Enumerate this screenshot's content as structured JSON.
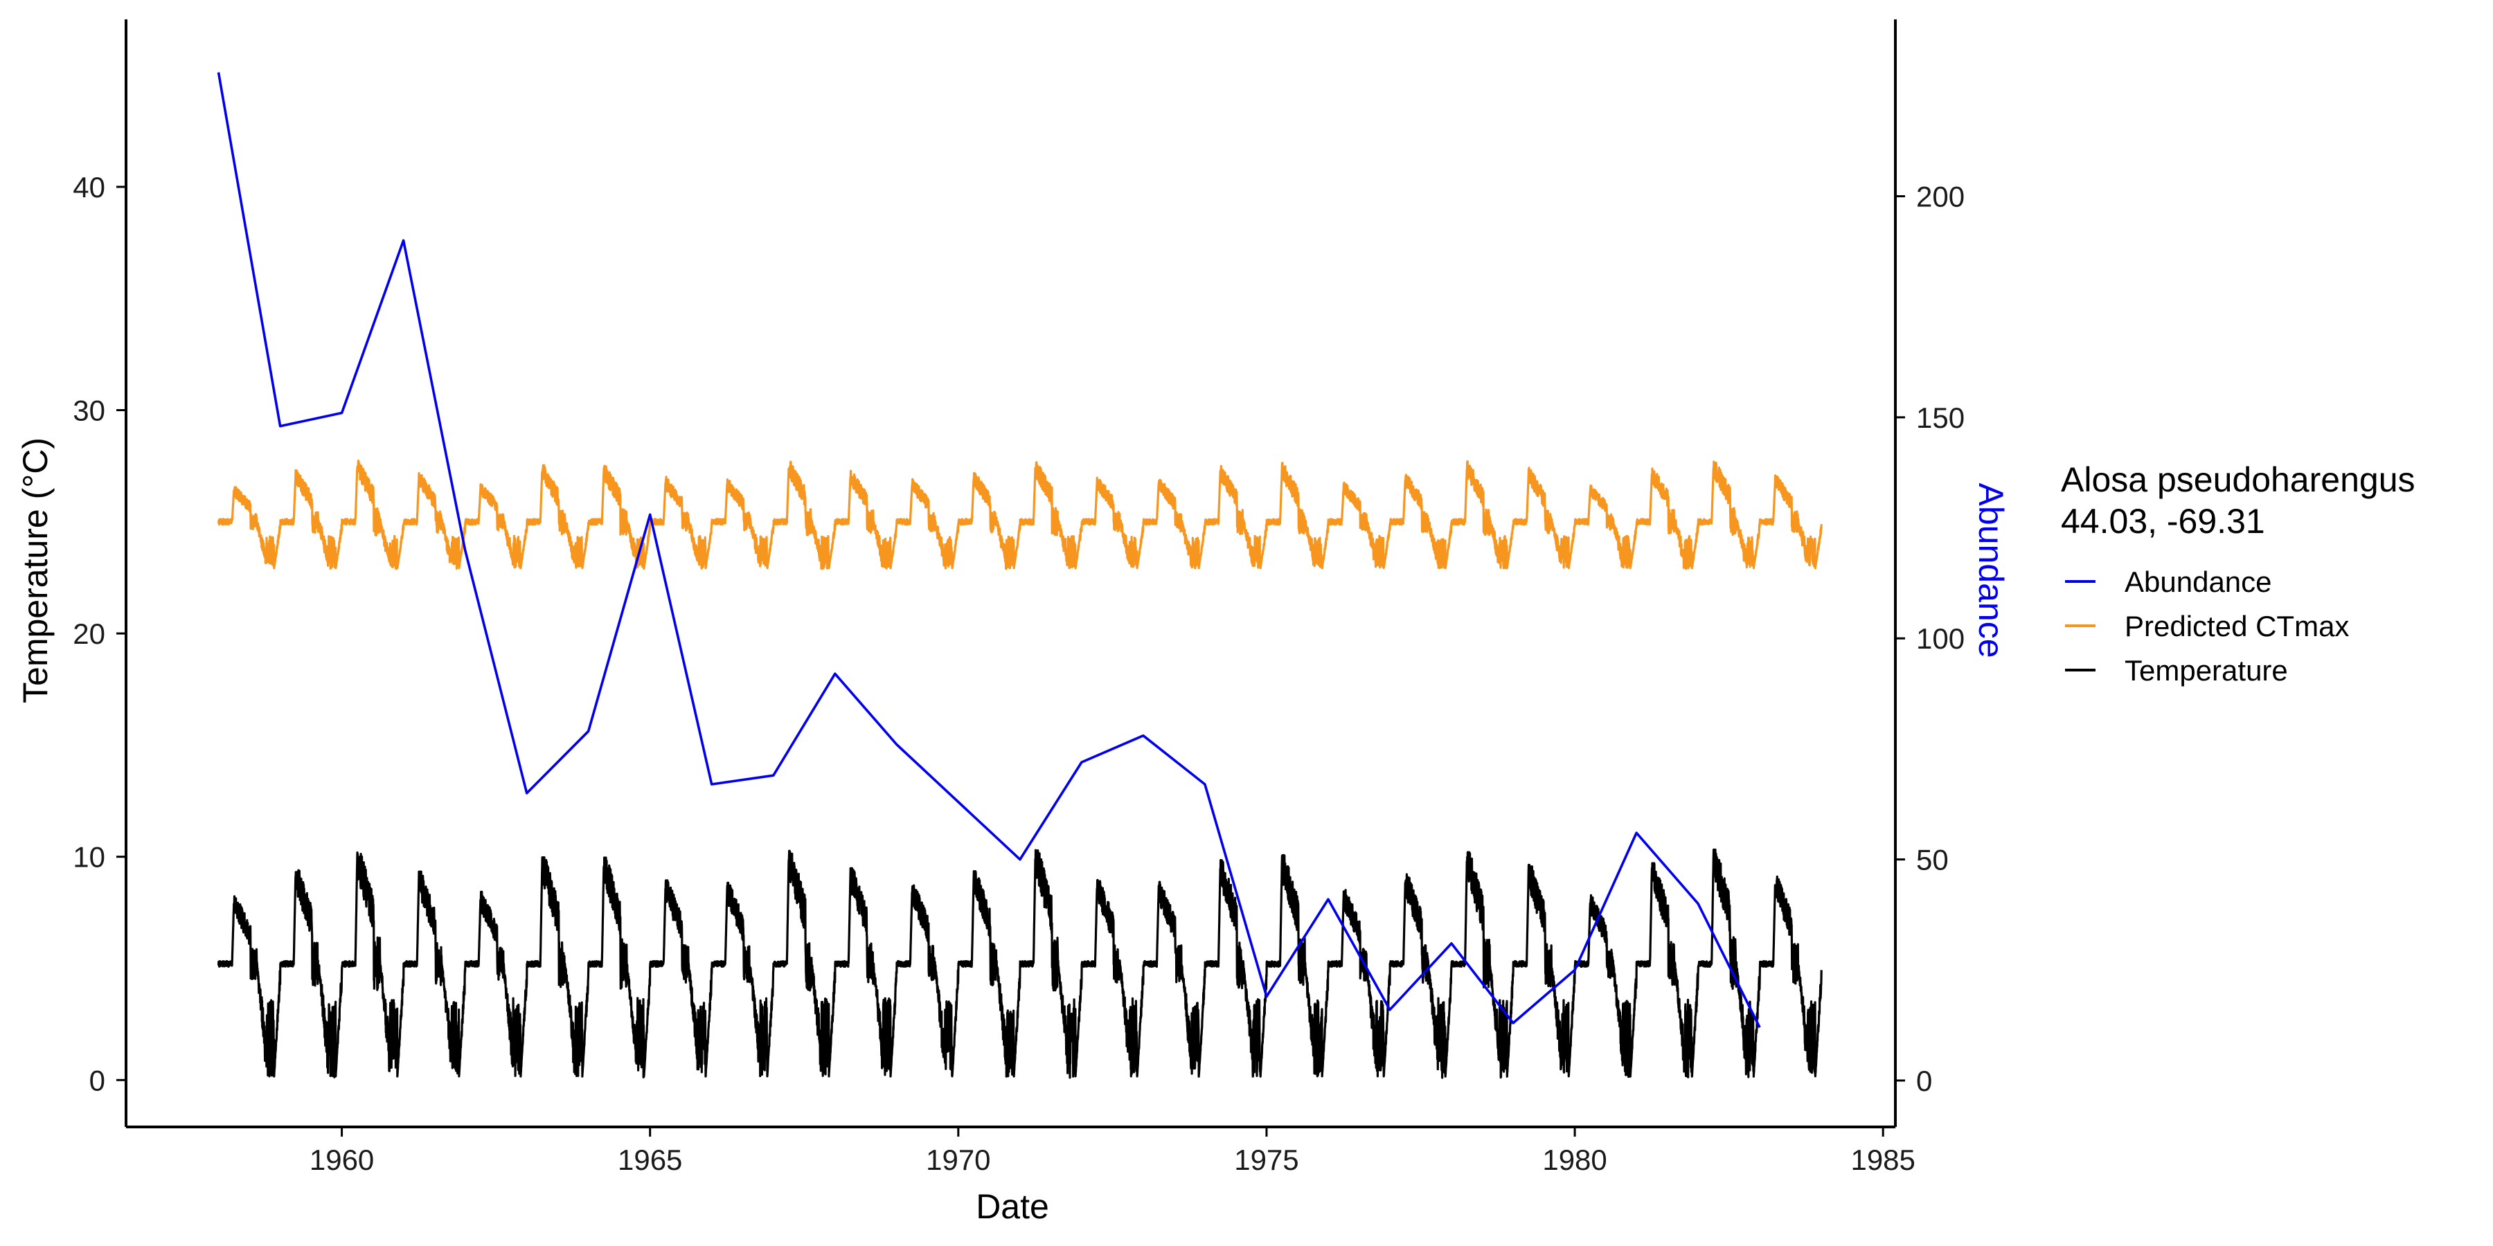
{
  "chart_data": {
    "type": "line",
    "xlabel": "Date",
    "ylabel_left": "Temperature (°C)",
    "ylabel_right": "Abundance",
    "xlim": [
      1956.5,
      1985.2
    ],
    "ylim_left": [
      -2.1,
      47.5
    ],
    "ylim_right": [
      -10.5,
      240
    ],
    "x_ticks": [
      1960,
      1965,
      1970,
      1975,
      1980,
      1985
    ],
    "y_ticks_left": [
      0,
      10,
      20,
      30,
      40
    ],
    "y_ticks_right": [
      0,
      50,
      100,
      150,
      200
    ],
    "grid": false,
    "legend": {
      "position": "right",
      "title_line1": "Alosa pseudoharengus",
      "title_line2": "44.03, -69.31",
      "entries": [
        "Abundance",
        "Predicted CTmax",
        "Temperature"
      ]
    },
    "series": [
      {
        "name": "Abundance",
        "axis": "right",
        "color": "#0000ee",
        "x": [
          1958,
          1959,
          1960,
          1961,
          1962,
          1963,
          1964,
          1965,
          1966,
          1967,
          1968,
          1969,
          1970,
          1971,
          1972,
          1973,
          1974,
          1975,
          1976,
          1977,
          1978,
          1979,
          1980,
          1981,
          1982,
          1983
        ],
        "y": [
          228,
          148,
          151,
          190,
          120,
          65,
          79,
          128,
          67,
          69,
          92,
          76,
          63,
          50,
          72,
          78,
          67,
          19,
          41,
          16,
          31,
          13,
          25,
          56,
          40,
          12
        ]
      },
      {
        "name": "Predicted CTmax",
        "axis": "left",
        "color": "#f7961e",
        "seasonal": {
          "start": 1958,
          "end": 1984,
          "base": 25.0,
          "min": 22.9,
          "peak": 27.2
        }
      },
      {
        "name": "Temperature",
        "axis": "left",
        "color": "#000000",
        "seasonal": {
          "start": 1958,
          "end": 1984,
          "base": 5.2,
          "min": 0.1,
          "peak": 9.5
        }
      }
    ]
  }
}
